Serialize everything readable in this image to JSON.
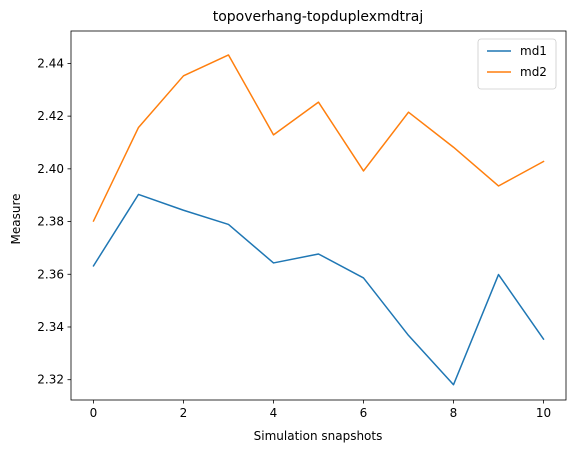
{
  "chart_data": {
    "type": "line",
    "title": "topoverhang-topduplexmdtraj",
    "xlabel": "Simulation snapshots",
    "ylabel": "Measure",
    "x": [
      0,
      1,
      2,
      3,
      4,
      5,
      6,
      7,
      8,
      9,
      10
    ],
    "xlim": [
      -0.5,
      10.5
    ],
    "ylim": [
      2.3123,
      2.4523
    ],
    "xticks": [
      0,
      2,
      4,
      6,
      8,
      10
    ],
    "yticks": [
      2.32,
      2.34,
      2.36,
      2.38,
      2.4,
      2.42,
      2.44
    ],
    "ytick_labels": [
      "2.32",
      "2.34",
      "2.36",
      "2.38",
      "2.40",
      "2.42",
      "2.44"
    ],
    "xtick_labels": [
      "0",
      "2",
      "4",
      "6",
      "8",
      "10"
    ],
    "grid": false,
    "legend_position": "top-right",
    "series": [
      {
        "name": "md1",
        "color": "#1f77b4",
        "values": [
          2.3632,
          2.3903,
          2.3843,
          2.3789,
          2.3643,
          2.3677,
          2.3586,
          2.3368,
          2.3181,
          2.3599,
          2.3354
        ]
      },
      {
        "name": "md2",
        "color": "#ff7f0e",
        "values": [
          2.3802,
          2.4157,
          2.4353,
          2.4432,
          2.4129,
          2.4253,
          2.3992,
          2.4215,
          2.4082,
          2.3935,
          2.4028
        ]
      }
    ]
  }
}
